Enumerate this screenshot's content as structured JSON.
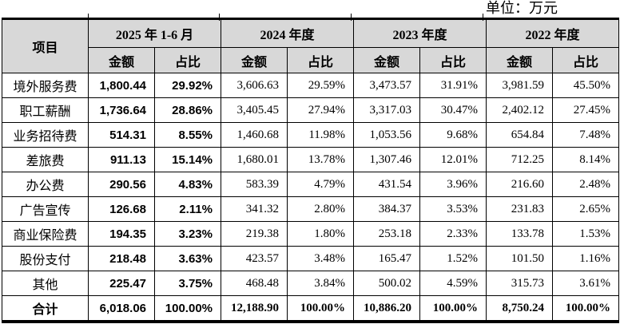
{
  "unit_label": "单位：万元",
  "colors": {
    "header_bg": "#d8d8d8",
    "border": "#000000",
    "page_bg": "#ffffff"
  },
  "table": {
    "corner_header": "项目",
    "col_groups": [
      {
        "label": "2025 年 1-6 月"
      },
      {
        "label": "2024 年度"
      },
      {
        "label": "2023 年度"
      },
      {
        "label": "2022 年度"
      }
    ],
    "sub_headers": [
      "金额",
      "占比"
    ],
    "rows": [
      {
        "label": "境外服务费",
        "values": [
          "1,800.44",
          "29.92%",
          "3,606.63",
          "29.59%",
          "3,473.57",
          "31.91%",
          "3,981.59",
          "45.50%"
        ]
      },
      {
        "label": "职工薪酬",
        "values": [
          "1,736.64",
          "28.86%",
          "3,405.45",
          "27.94%",
          "3,317.03",
          "30.47%",
          "2,402.12",
          "27.45%"
        ]
      },
      {
        "label": "业务招待费",
        "values": [
          "514.31",
          "8.55%",
          "1,460.68",
          "11.98%",
          "1,053.56",
          "9.68%",
          "654.84",
          "7.48%"
        ]
      },
      {
        "label": "差旅费",
        "values": [
          "911.13",
          "15.14%",
          "1,680.01",
          "13.78%",
          "1,307.46",
          "12.01%",
          "712.25",
          "8.14%"
        ]
      },
      {
        "label": "办公费",
        "values": [
          "290.56",
          "4.83%",
          "583.39",
          "4.79%",
          "431.54",
          "3.96%",
          "216.60",
          "2.48%"
        ]
      },
      {
        "label": "广告宣传",
        "values": [
          "126.68",
          "2.11%",
          "341.32",
          "2.80%",
          "384.37",
          "3.53%",
          "231.83",
          "2.65%"
        ]
      },
      {
        "label": "商业保险费",
        "values": [
          "194.35",
          "3.23%",
          "219.38",
          "1.80%",
          "253.18",
          "2.33%",
          "133.78",
          "1.53%"
        ]
      },
      {
        "label": "股份支付",
        "values": [
          "218.48",
          "3.63%",
          "423.57",
          "3.48%",
          "165.47",
          "1.52%",
          "101.50",
          "1.16%"
        ]
      },
      {
        "label": "其他",
        "values": [
          "225.47",
          "3.75%",
          "468.48",
          "3.84%",
          "500.02",
          "4.59%",
          "315.73",
          "3.61%"
        ]
      },
      {
        "label": "合计",
        "values": [
          "6,018.06",
          "100.00%",
          "12,188.90",
          "100.00%",
          "10,886.20",
          "100.00%",
          "8,750.24",
          "100.00%"
        ]
      }
    ]
  }
}
